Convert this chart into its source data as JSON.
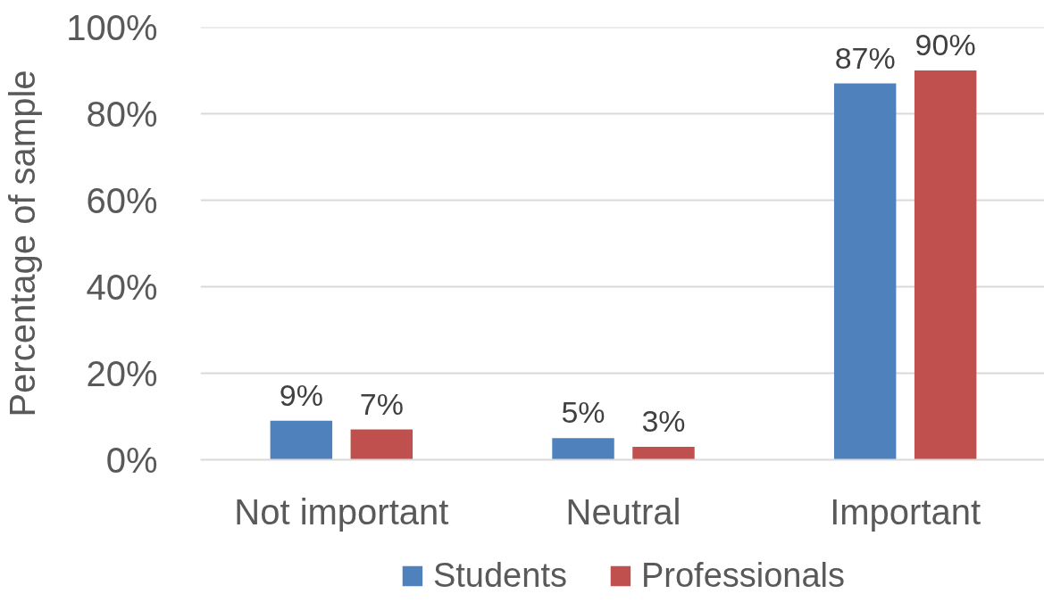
{
  "chart_data": {
    "type": "bar",
    "ylabel": "Percentage of sample",
    "categories": [
      "Not important",
      "Neutral",
      "Important"
    ],
    "series": [
      {
        "name": "Students",
        "color": "#4f81bd",
        "values": [
          9,
          5,
          87
        ],
        "value_labels": [
          "9%",
          "5%",
          "87%"
        ]
      },
      {
        "name": "Professionals",
        "color": "#c0504d",
        "values": [
          7,
          3,
          90
        ],
        "value_labels": [
          "7%",
          "3%",
          "90%"
        ]
      }
    ],
    "ylim": [
      0,
      100
    ],
    "yticks": [
      {
        "value": 0,
        "label": "0%"
      },
      {
        "value": 20,
        "label": "20%"
      },
      {
        "value": 40,
        "label": "40%"
      },
      {
        "value": 60,
        "label": "60%"
      },
      {
        "value": 80,
        "label": "80%"
      },
      {
        "value": 100,
        "label": "100%"
      }
    ],
    "grid": "y",
    "legend": "bottom"
  }
}
